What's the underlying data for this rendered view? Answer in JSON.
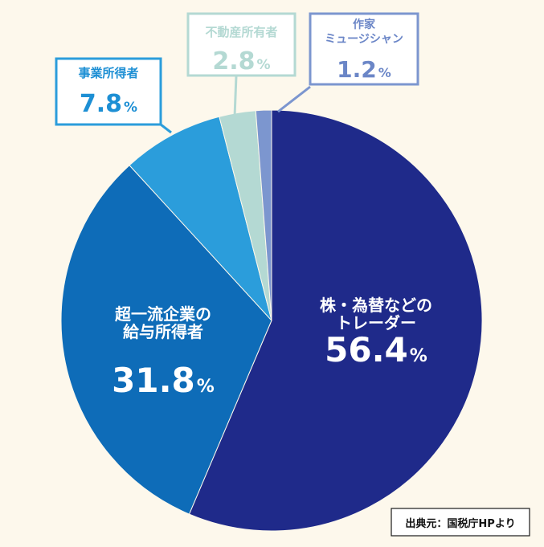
{
  "chart_data": {
    "type": "pie",
    "title": "",
    "slices": [
      {
        "label_lines": [
          "株・為替などの",
          "トレーダー"
        ],
        "value": 56.4,
        "num": "56.4",
        "unit": "%",
        "color": "#1f2a8a"
      },
      {
        "label_lines": [
          "超一流企業の",
          "給与所得者"
        ],
        "value": 31.8,
        "num": "31.8",
        "unit": "%",
        "color": "#0e6cb8"
      },
      {
        "label_lines": [
          "事業所得者"
        ],
        "value": 7.8,
        "num": "7.8",
        "unit": "%",
        "color": "#2b9ddb"
      },
      {
        "label_lines": [
          "不動産所有者"
        ],
        "value": 2.8,
        "num": "2.8",
        "unit": "%",
        "color": "#b4d9d3"
      },
      {
        "label_lines": [
          "作家",
          "ミュージシャン"
        ],
        "value": 1.2,
        "num": "1.2",
        "unit": "%",
        "color": "#7c96cf"
      }
    ],
    "source": "出典元：国税庁HPより"
  }
}
